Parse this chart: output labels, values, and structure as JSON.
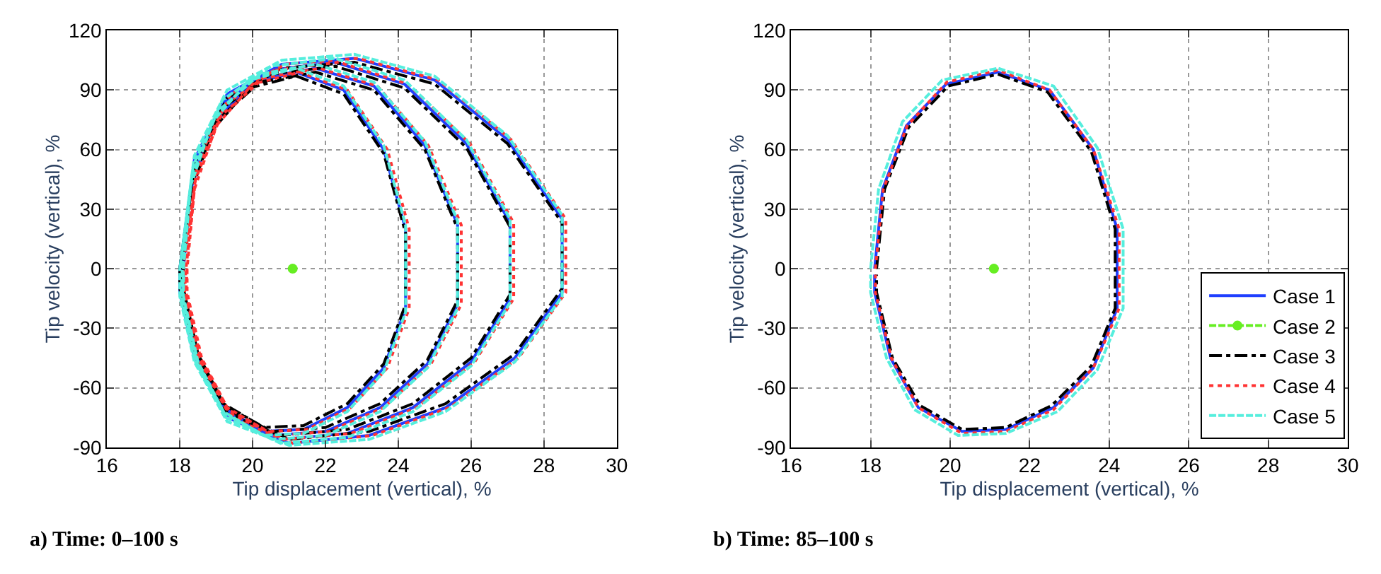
{
  "chart_data": [
    {
      "type": "line",
      "xlabel": "Tip displacement (vertical), %",
      "ylabel": "Tip velocity (vertical), %",
      "xlim": [
        16,
        30
      ],
      "xticks": [
        16,
        18,
        20,
        22,
        24,
        26,
        28,
        30
      ],
      "ylim": [
        -90,
        120
      ],
      "yticks": [
        -90,
        -60,
        -30,
        0,
        30,
        60,
        90,
        120
      ],
      "grid": true,
      "annotations": [
        "a) Time: 0–100 s"
      ],
      "series": [
        {
          "color": "#1f3fff",
          "line_style": "solid",
          "marker": "none",
          "x": [
            18.0,
            18.4,
            19.3,
            20.8,
            22.8,
            25.0,
            27.0,
            28.5,
            28.5,
            27.2,
            25.3,
            23.2,
            21.0,
            19.3,
            18.4,
            18.0,
            18.0,
            18.37,
            19.17,
            20.5,
            22.27,
            24.17,
            25.87,
            27.07,
            27.07,
            26.0,
            24.4,
            22.6,
            20.77,
            19.27,
            18.43,
            18.03,
            18.07,
            18.33,
            19.03,
            20.2,
            21.73,
            23.33,
            24.73,
            25.63,
            25.63,
            24.8,
            23.5,
            22.0,
            20.53,
            19.23,
            18.47,
            18.07,
            18.1,
            18.3,
            18.9,
            19.9,
            21.2,
            22.5,
            23.6,
            24.2,
            24.2,
            23.6,
            22.6,
            21.4,
            20.3,
            19.2,
            18.5,
            18.1,
            18.1
          ],
          "values": [
            0,
            55,
            88,
            103,
            106,
            95,
            65,
            25,
            -12,
            -45,
            -70,
            -84,
            -88,
            -75,
            -45,
            -12,
            0,
            50,
            83,
            100,
            104,
            93,
            63,
            23,
            -15,
            -47,
            -70,
            -83,
            -86,
            -73,
            -45,
            -12,
            0,
            45,
            77,
            96,
            101,
            92,
            62,
            22,
            -18,
            -48,
            -70,
            -82,
            -84,
            -71,
            -45,
            -12,
            0,
            40,
            72,
            93,
            99,
            90,
            60,
            20,
            -20,
            -50,
            -70,
            -81,
            -82,
            -70,
            -45,
            -12,
            0
          ]
        },
        {
          "color": "#66ee22",
          "line_style": "dashed",
          "marker": "circle",
          "x": [
            21.1
          ],
          "values": [
            0
          ]
        },
        {
          "color": "#000000",
          "line_style": "dashdot",
          "marker": "none",
          "x": [
            18.0,
            18.4,
            19.3,
            20.8,
            22.8,
            25.0,
            27.0,
            28.5,
            28.5,
            27.2,
            25.3,
            23.2,
            21.0,
            19.3,
            18.4,
            18.0,
            18.0,
            18.37,
            19.17,
            20.5,
            22.27,
            24.17,
            25.87,
            27.07,
            27.07,
            26.0,
            24.4,
            22.6,
            20.77,
            19.27,
            18.43,
            18.03,
            18.07,
            18.33,
            19.03,
            20.2,
            21.73,
            23.33,
            24.73,
            25.63,
            25.63,
            24.8,
            23.5,
            22.0,
            20.53,
            19.23,
            18.47,
            18.07,
            18.1,
            18.3,
            18.9,
            19.9,
            21.2,
            22.5,
            23.6,
            24.2,
            24.2,
            23.6,
            22.6,
            21.4,
            20.3,
            19.2,
            18.5,
            18.1,
            18.1
          ],
          "values": [
            0,
            53,
            86,
            101,
            104,
            93,
            63,
            23,
            -10,
            -43,
            -68,
            -82,
            -86,
            -73,
            -43,
            -10,
            0,
            48,
            81,
            98,
            102,
            91,
            61,
            21,
            -13,
            -45,
            -68,
            -81,
            -84,
            -71,
            -43,
            -10,
            0,
            43,
            75,
            94,
            99,
            90,
            60,
            20,
            -16,
            -46,
            -68,
            -80,
            -82,
            -69,
            -43,
            -10,
            0,
            38,
            70,
            91,
            97,
            88,
            58,
            18,
            -18,
            -48,
            -68,
            -79,
            -80,
            -68,
            -43,
            -10,
            0
          ]
        },
        {
          "color": "#ff3333",
          "line_style": "dotted",
          "marker": "none",
          "x": [
            18.1,
            18.5,
            19.4,
            20.9,
            22.9,
            25.1,
            27.1,
            28.6,
            28.6,
            27.3,
            25.4,
            23.3,
            21.1,
            19.4,
            18.5,
            18.1,
            18.1,
            18.47,
            19.27,
            20.6,
            22.37,
            24.27,
            25.97,
            27.17,
            27.17,
            26.1,
            24.5,
            22.7,
            20.87,
            19.37,
            18.53,
            18.13,
            18.17,
            18.43,
            19.13,
            20.3,
            21.83,
            23.43,
            24.83,
            25.73,
            25.73,
            24.9,
            23.6,
            22.1,
            20.63,
            19.33,
            18.57,
            18.17,
            18.2,
            18.4,
            19.0,
            20.0,
            21.3,
            22.6,
            23.7,
            24.3,
            24.3,
            23.7,
            22.7,
            21.5,
            20.4,
            19.3,
            18.6,
            18.2,
            18.2
          ],
          "values": [
            0,
            55,
            88,
            103,
            106,
            95,
            65,
            25,
            -12,
            -45,
            -70,
            -84,
            -88,
            -75,
            -45,
            -12,
            0,
            50,
            83,
            100,
            104,
            93,
            63,
            23,
            -15,
            -47,
            -70,
            -83,
            -86,
            -73,
            -45,
            -12,
            0,
            45,
            77,
            96,
            101,
            92,
            62,
            22,
            -18,
            -48,
            -70,
            -82,
            -84,
            -71,
            -45,
            -12,
            0,
            40,
            72,
            93,
            99,
            90,
            60,
            20,
            -20,
            -50,
            -70,
            -81,
            -82,
            -70,
            -45,
            -12,
            0
          ]
        },
        {
          "color": "#55eedd",
          "line_style": "dashed",
          "marker": "none",
          "x": [
            18.0,
            18.4,
            19.3,
            20.8,
            22.8,
            25.0,
            27.0,
            28.5,
            28.5,
            27.2,
            25.3,
            23.2,
            21.0,
            19.3,
            18.4,
            18.0,
            18.0,
            18.37,
            19.17,
            20.5,
            22.27,
            24.17,
            25.87,
            27.07,
            27.07,
            26.0,
            24.4,
            22.6,
            20.77,
            19.27,
            18.43,
            18.03,
            18.07,
            18.33,
            19.03,
            20.2,
            21.73,
            23.33,
            24.73,
            25.63,
            25.63,
            24.8,
            23.5,
            22.0,
            20.53,
            19.23,
            18.47,
            18.07,
            18.1,
            18.3,
            18.9,
            19.9,
            21.2,
            22.5,
            23.6,
            24.2,
            24.2,
            23.6,
            22.6,
            21.4,
            20.3,
            19.2,
            18.5,
            18.1,
            18.1
          ],
          "values": [
            0,
            57,
            90,
            105,
            108,
            97,
            67,
            27,
            -14,
            -47,
            -72,
            -86,
            -89,
            -77,
            -47,
            -14,
            0,
            52,
            85,
            102,
            106,
            95,
            65,
            25,
            -17,
            -49,
            -72,
            -85,
            -88,
            -75,
            -47,
            -14,
            0,
            47,
            79,
            98,
            103,
            94,
            64,
            24,
            -20,
            -50,
            -72,
            -84,
            -86,
            -73,
            -47,
            -14,
            0,
            42,
            74,
            95,
            101,
            92,
            62,
            22,
            -22,
            -52,
            -72,
            -83,
            -84,
            -72,
            -47,
            -14,
            -3
          ]
        }
      ]
    },
    {
      "type": "line",
      "xlabel": "Tip displacement (vertical), %",
      "ylabel": "Tip velocity (vertical), %",
      "xlim": [
        16,
        30
      ],
      "xticks": [
        16,
        18,
        20,
        22,
        24,
        26,
        28,
        30
      ],
      "ylim": [
        -90,
        120
      ],
      "yticks": [
        -90,
        -60,
        -30,
        0,
        30,
        60,
        90,
        120
      ],
      "grid": true,
      "legend": "bottom right",
      "annotations": [
        "b) Time: 85–100 s"
      ],
      "series": [
        {
          "name": "Case 1",
          "color": "#1f3fff",
          "line_style": "solid",
          "marker": "none",
          "x": [
            18.1,
            18.3,
            18.9,
            19.9,
            21.2,
            22.5,
            23.6,
            24.2,
            24.2,
            23.6,
            22.6,
            21.4,
            20.3,
            19.2,
            18.5,
            18.1,
            18.1
          ],
          "values": [
            0,
            40,
            72,
            93,
            99,
            90,
            60,
            20,
            -20,
            -50,
            -70,
            -81,
            -82,
            -70,
            -45,
            -12,
            -3
          ]
        },
        {
          "name": "Case 2",
          "color": "#66ee22",
          "line_style": "dashed",
          "marker": "circle",
          "x": [
            21.1
          ],
          "values": [
            0
          ]
        },
        {
          "name": "Case 3",
          "color": "#000000",
          "line_style": "dashdot",
          "marker": "none",
          "x": [
            18.15,
            18.35,
            18.95,
            19.95,
            21.2,
            22.45,
            23.55,
            24.15,
            24.15,
            23.55,
            22.55,
            21.4,
            20.3,
            19.25,
            18.55,
            18.15,
            18.15
          ],
          "values": [
            0,
            40,
            71,
            92,
            98,
            89,
            59,
            20,
            -20,
            -49,
            -69,
            -80,
            -81,
            -69,
            -45,
            -12,
            -3
          ]
        },
        {
          "name": "Case 4",
          "color": "#ff3333",
          "line_style": "dotted",
          "marker": "none",
          "x": [
            18.12,
            18.32,
            18.92,
            19.92,
            21.2,
            22.5,
            23.6,
            24.25,
            24.25,
            23.6,
            22.6,
            21.4,
            20.3,
            19.2,
            18.52,
            18.12,
            18.12
          ],
          "values": [
            0,
            40,
            72,
            94,
            100,
            90,
            60,
            20,
            -20,
            -50,
            -71,
            -82,
            -83,
            -70,
            -45,
            -12,
            -3
          ]
        },
        {
          "name": "Case 5",
          "color": "#55eedd",
          "line_style": "dashed",
          "marker": "none",
          "x": [
            18.0,
            18.2,
            18.8,
            19.8,
            21.2,
            22.6,
            23.7,
            24.35,
            24.35,
            23.7,
            22.7,
            21.4,
            20.2,
            19.1,
            18.4,
            18.0,
            18.0
          ],
          "values": [
            0,
            40,
            74,
            95,
            101,
            92,
            61,
            20,
            -20,
            -51,
            -72,
            -83,
            -84,
            -71,
            -45,
            -12,
            -3
          ]
        }
      ]
    }
  ]
}
